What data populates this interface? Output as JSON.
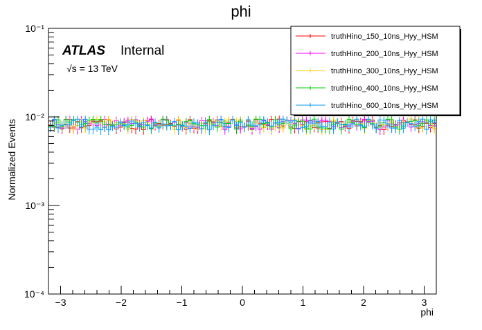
{
  "chart_data": {
    "type": "line",
    "title": "phi",
    "xlabel": "phi",
    "ylabel": "Normalized Events",
    "xlim": [
      -3.2,
      3.2
    ],
    "ylim": [
      0.0001,
      0.1
    ],
    "yscale": "log",
    "x_ticks": [
      "−3",
      "−2",
      "−1",
      "0",
      "1",
      "2",
      "3"
    ],
    "y_ticks": [
      "10⁻⁴",
      "10⁻³",
      "10⁻²",
      "10⁻¹"
    ],
    "atlas_label": "ATLAS",
    "atlas_status": "Internal",
    "energy_label": "√s = 13 TeV",
    "legend_position": "top-right",
    "n_bins": 100,
    "series": [
      {
        "name": "truthHino_150_10ns_Hyy_HSM",
        "color": "#ff0000",
        "mean": 0.0083,
        "error": 0.0009
      },
      {
        "name": "truthHino_200_10ns_Hyy_HSM",
        "color": "#ff00ff",
        "mean": 0.0083,
        "error": 0.0009
      },
      {
        "name": "truthHino_300_10ns_Hyy_HSM",
        "color": "#ffcc00",
        "mean": 0.0083,
        "error": 0.0009
      },
      {
        "name": "truthHino_400_10ns_Hyy_HSM",
        "color": "#00cc00",
        "mean": 0.0083,
        "error": 0.0009
      },
      {
        "name": "truthHino_600_10ns_Hyy_HSM",
        "color": "#0099ff",
        "mean": 0.0083,
        "error": 0.0009
      }
    ]
  }
}
